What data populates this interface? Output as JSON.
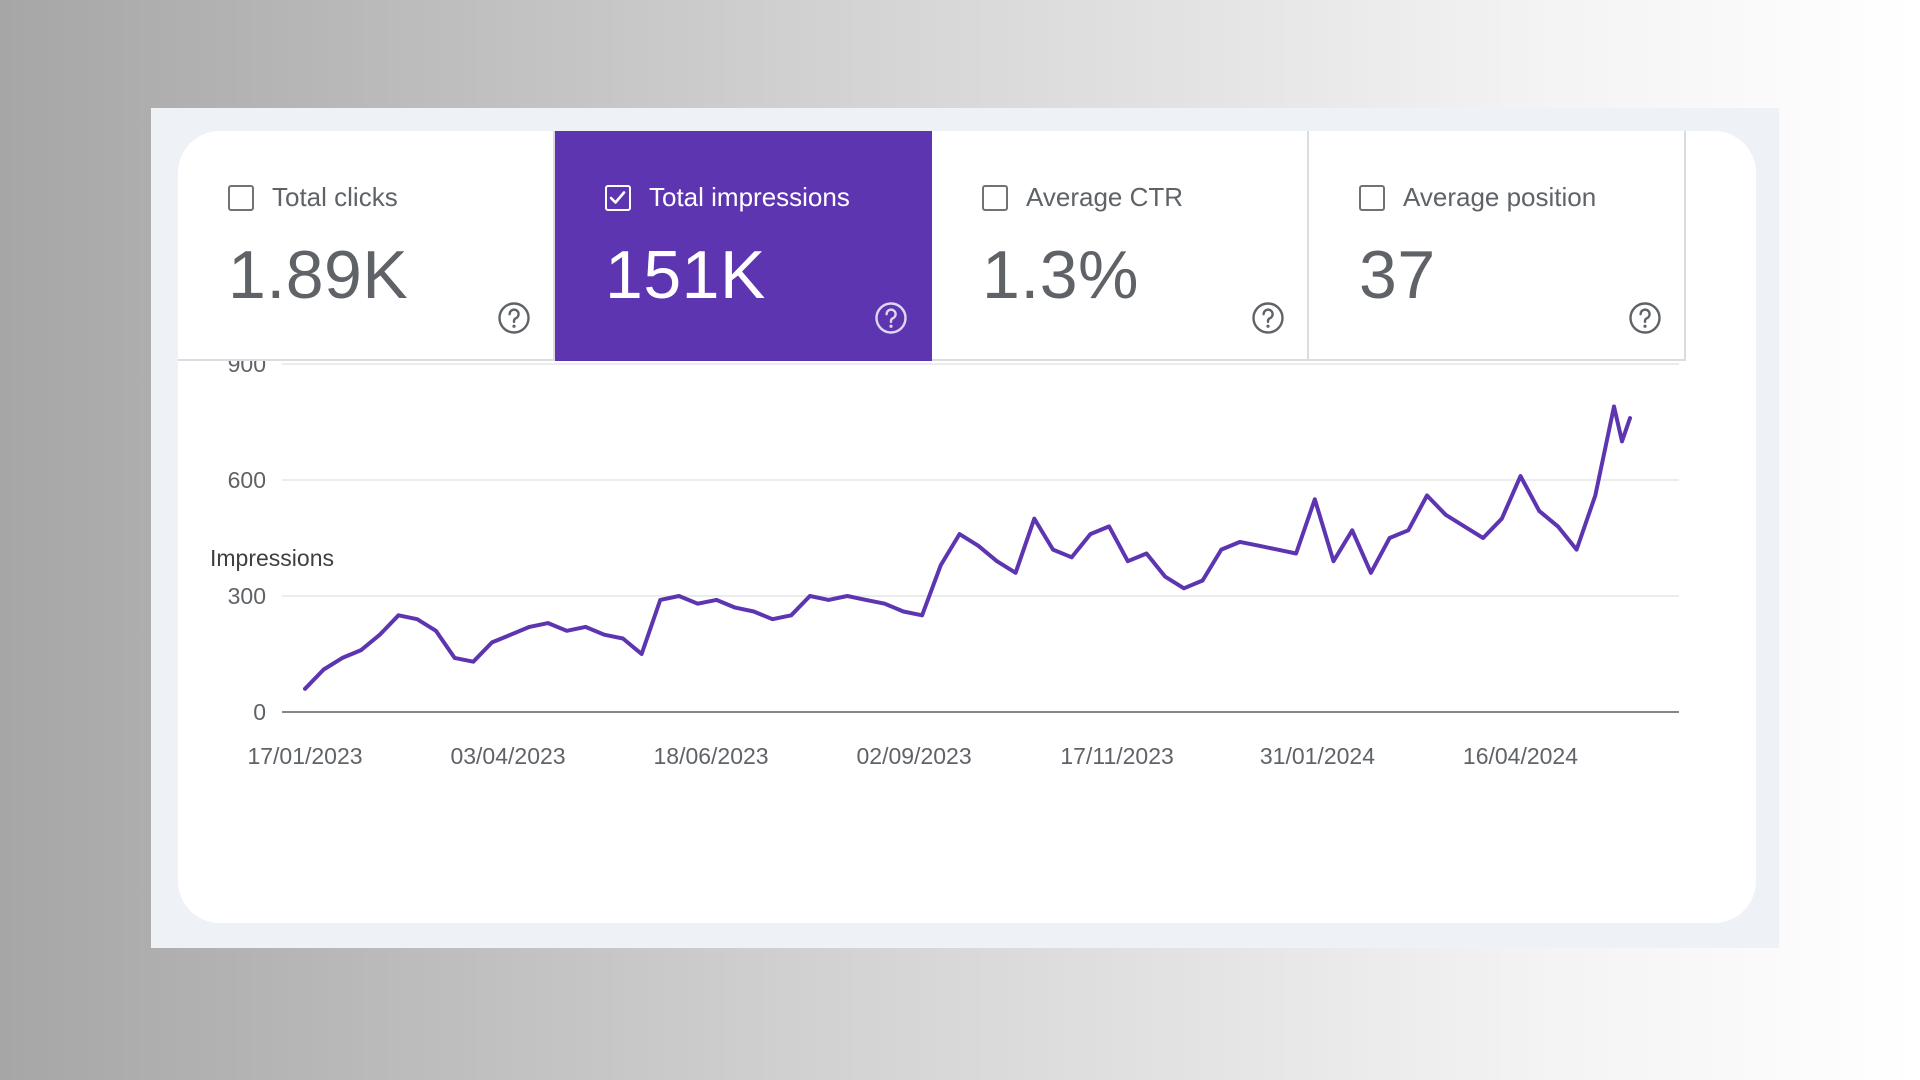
{
  "metrics": [
    {
      "label": "Total clicks",
      "value": "1.89K",
      "checked": false
    },
    {
      "label": "Total impressions",
      "value": "151K",
      "checked": true
    },
    {
      "label": "Average CTR",
      "value": "1.3%",
      "checked": false
    },
    {
      "label": "Average position",
      "value": "37",
      "checked": false
    }
  ],
  "icons": {
    "checkbox": "checkbox-icon",
    "help": "help-circle-icon",
    "check": "check-icon"
  },
  "colors": {
    "accent": "#5e35b1",
    "line": "#5e35b1",
    "grid": "#e6e6e6",
    "axis": "#757575",
    "text": "#5f6368"
  },
  "chart_data": {
    "type": "line",
    "title": "",
    "ylabel": "Impressions",
    "xlabel": "",
    "ylim": [
      0,
      900
    ],
    "yticks": [
      0,
      300,
      600,
      900
    ],
    "ytick_labels": [
      "0",
      "300",
      "600",
      "900"
    ],
    "xlim": [
      "2023-01-17",
      "2024-05-27"
    ],
    "xticks": [
      "2023-01-17",
      "2023-04-03",
      "2023-06-18",
      "2023-09-02",
      "2023-11-17",
      "2024-01-31",
      "2024-04-16"
    ],
    "xtick_labels": [
      "17/01/2023",
      "03/04/2023",
      "18/06/2023",
      "02/09/2023",
      "17/11/2023",
      "31/01/2024",
      "16/04/2024"
    ],
    "grid": true,
    "series": [
      {
        "name": "",
        "x": [
          "2023-01-17",
          "2023-01-24",
          "2023-01-31",
          "2023-02-07",
          "2023-02-14",
          "2023-02-21",
          "2023-02-28",
          "2023-03-07",
          "2023-03-14",
          "2023-03-21",
          "2023-03-28",
          "2023-04-04",
          "2023-04-11",
          "2023-04-18",
          "2023-04-25",
          "2023-05-02",
          "2023-05-09",
          "2023-05-16",
          "2023-05-23",
          "2023-05-30",
          "2023-06-06",
          "2023-06-13",
          "2023-06-20",
          "2023-06-27",
          "2023-07-04",
          "2023-07-11",
          "2023-07-18",
          "2023-07-25",
          "2023-08-01",
          "2023-08-08",
          "2023-08-15",
          "2023-08-22",
          "2023-08-29",
          "2023-09-05",
          "2023-09-12",
          "2023-09-19",
          "2023-09-26",
          "2023-10-03",
          "2023-10-10",
          "2023-10-17",
          "2023-10-24",
          "2023-10-31",
          "2023-11-07",
          "2023-11-14",
          "2023-11-21",
          "2023-11-28",
          "2023-12-05",
          "2023-12-12",
          "2023-12-19",
          "2023-12-26",
          "2024-01-02",
          "2024-01-09",
          "2024-01-16",
          "2024-01-23",
          "2024-01-30",
          "2024-02-06",
          "2024-02-13",
          "2024-02-20",
          "2024-02-27",
          "2024-03-05",
          "2024-03-12",
          "2024-03-19",
          "2024-03-26",
          "2024-04-02",
          "2024-04-09",
          "2024-04-16",
          "2024-04-23",
          "2024-04-30",
          "2024-05-07",
          "2024-05-14",
          "2024-05-21",
          "2024-05-24",
          "2024-05-27"
        ],
        "y": [
          60,
          110,
          140,
          160,
          200,
          250,
          240,
          210,
          140,
          130,
          180,
          200,
          220,
          230,
          210,
          220,
          200,
          190,
          150,
          290,
          300,
          280,
          290,
          270,
          260,
          240,
          250,
          300,
          290,
          300,
          290,
          280,
          260,
          250,
          380,
          460,
          430,
          390,
          360,
          500,
          420,
          400,
          460,
          480,
          390,
          410,
          350,
          320,
          340,
          420,
          440,
          430,
          420,
          410,
          550,
          390,
          470,
          360,
          450,
          470,
          560,
          510,
          480,
          450,
          500,
          610,
          520,
          480,
          420,
          560,
          790,
          700,
          760
        ]
      }
    ]
  }
}
